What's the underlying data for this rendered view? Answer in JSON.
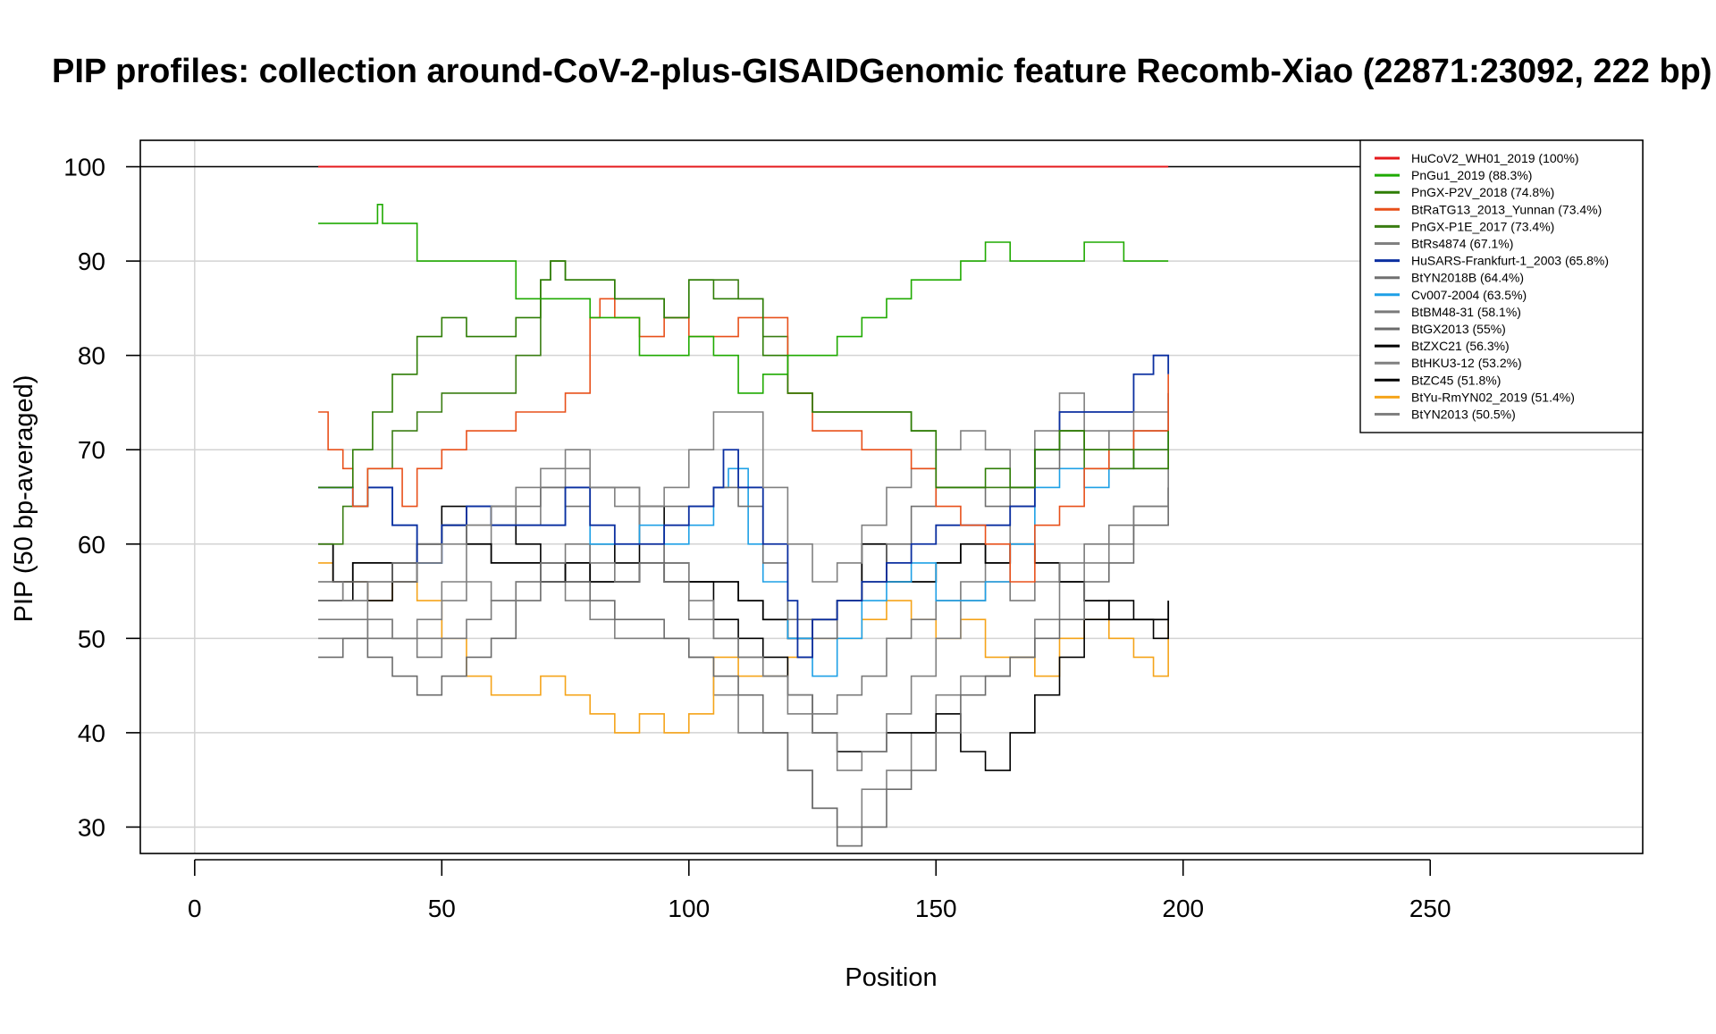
{
  "chart_data": {
    "type": "line",
    "title": "PIP profiles: collection around-CoV-2-plus-GISAIDGenomic feature Recomb-Xiao (22871:23092, 222 bp)",
    "xlabel": "Position",
    "ylabel": "PIP (50 bp-averaged)",
    "xlim": [
      -11,
      293
    ],
    "ylim": [
      27.2,
      102.8
    ],
    "xticks": [
      0,
      50,
      100,
      150,
      200,
      250
    ],
    "yticks": [
      30,
      40,
      50,
      60,
      70,
      80,
      90,
      100
    ],
    "grid": true,
    "reference_line": 100,
    "legend_position": "top-right",
    "series": [
      {
        "name": "HuCoV2_WH01_2019 (100%)",
        "color": "#e41a1c",
        "width": 2,
        "x": [
          25,
          197
        ],
        "y": [
          100,
          100
        ]
      },
      {
        "name": "PnGu1_2019 (88.3%)",
        "color": "#1faa00",
        "width": 1.6,
        "x": [
          25,
          36,
          37,
          38,
          42,
          45,
          60,
          65,
          70,
          75,
          80,
          85,
          90,
          95,
          100,
          105,
          110,
          115,
          120,
          125,
          130,
          135,
          140,
          145,
          150,
          155,
          160,
          165,
          170,
          175,
          180,
          185,
          188,
          197
        ],
        "y": [
          94,
          94,
          96,
          94,
          94,
          90,
          90,
          86,
          86,
          86,
          84,
          84,
          80,
          80,
          82,
          80,
          76,
          78,
          80,
          80,
          82,
          84,
          86,
          88,
          88,
          90,
          92,
          90,
          90,
          90,
          92,
          92,
          90,
          90
        ]
      },
      {
        "name": "PnGX-P2V_2018 (74.8%)",
        "color": "#2e7d05",
        "width": 1.6,
        "x": [
          25,
          28,
          32,
          36,
          40,
          45,
          50,
          55,
          60,
          65,
          70,
          72,
          75,
          80,
          85,
          90,
          95,
          100,
          105,
          110,
          115,
          120,
          125,
          130,
          135,
          140,
          145,
          150,
          155,
          160,
          165,
          170,
          175,
          180,
          185,
          190,
          197
        ],
        "y": [
          66,
          66,
          70,
          74,
          78,
          82,
          84,
          82,
          82,
          84,
          88,
          90,
          88,
          88,
          86,
          86,
          84,
          88,
          86,
          86,
          80,
          76,
          74,
          74,
          74,
          74,
          72,
          66,
          66,
          68,
          66,
          70,
          72,
          70,
          70,
          68,
          72
        ]
      },
      {
        "name": "BtRaTG13_2013_Yunnan (73.4%)",
        "color": "#e8501a",
        "width": 1.6,
        "x": [
          25,
          27,
          30,
          32,
          35,
          40,
          42,
          45,
          50,
          55,
          60,
          65,
          70,
          75,
          80,
          82,
          85,
          90,
          95,
          100,
          105,
          110,
          115,
          120,
          125,
          130,
          135,
          140,
          145,
          150,
          155,
          160,
          165,
          170,
          175,
          180,
          185,
          190,
          197
        ],
        "y": [
          74,
          70,
          68,
          64,
          68,
          68,
          64,
          68,
          70,
          72,
          72,
          74,
          74,
          76,
          84,
          86,
          84,
          82,
          84,
          82,
          82,
          84,
          84,
          76,
          72,
          72,
          70,
          70,
          68,
          64,
          62,
          60,
          56,
          62,
          64,
          68,
          70,
          72,
          78
        ]
      },
      {
        "name": "PnGX-P1E_2017 (73.4%)",
        "color": "#3a7d12",
        "width": 1.6,
        "x": [
          25,
          30,
          35,
          40,
          45,
          50,
          55,
          60,
          65,
          70,
          72,
          75,
          80,
          85,
          90,
          95,
          100,
          105,
          110,
          115,
          120,
          125,
          130,
          135,
          140,
          145,
          150,
          155,
          160,
          165,
          170,
          175,
          180,
          185,
          190,
          197
        ],
        "y": [
          60,
          64,
          68,
          72,
          74,
          76,
          76,
          76,
          80,
          88,
          90,
          88,
          88,
          86,
          86,
          84,
          88,
          88,
          86,
          82,
          76,
          74,
          74,
          74,
          74,
          72,
          66,
          66,
          66,
          66,
          70,
          72,
          68,
          68,
          70,
          72
        ]
      },
      {
        "name": "BtRs4874 (67.1%)",
        "color": "#808080",
        "width": 1.6,
        "x": [
          25,
          30,
          35,
          40,
          45,
          50,
          55,
          60,
          65,
          70,
          75,
          80,
          85,
          90,
          95,
          100,
          105,
          110,
          115,
          120,
          125,
          130,
          135,
          140,
          145,
          150,
          155,
          160,
          165,
          170,
          175,
          180,
          185,
          190,
          197
        ],
        "y": [
          56,
          54,
          56,
          56,
          58,
          60,
          62,
          64,
          66,
          68,
          68,
          66,
          66,
          64,
          66,
          70,
          74,
          74,
          66,
          60,
          56,
          58,
          62,
          66,
          68,
          70,
          72,
          70,
          66,
          70,
          72,
          70,
          72,
          74,
          76
        ]
      },
      {
        "name": "HuSARS-Frankfurt-1_2003 (65.8%)",
        "color": "#0b2fa0",
        "width": 1.8,
        "x": [
          25,
          28,
          32,
          35,
          40,
          45,
          50,
          55,
          60,
          65,
          70,
          75,
          80,
          85,
          90,
          95,
          100,
          105,
          107,
          110,
          115,
          120,
          122,
          125,
          130,
          135,
          140,
          145,
          150,
          155,
          160,
          165,
          170,
          175,
          180,
          185,
          190,
          194,
          197
        ],
        "y": [
          66,
          66,
          64,
          66,
          62,
          58,
          62,
          64,
          62,
          62,
          62,
          66,
          62,
          60,
          60,
          62,
          64,
          66,
          70,
          66,
          60,
          54,
          48,
          52,
          54,
          56,
          58,
          60,
          62,
          62,
          62,
          64,
          70,
          74,
          74,
          74,
          78,
          80,
          78
        ]
      },
      {
        "name": "BtYN2018B (64.4%)",
        "color": "#707070",
        "width": 1.6,
        "x": [
          25,
          30,
          35,
          40,
          45,
          50,
          55,
          60,
          65,
          70,
          75,
          80,
          85,
          90,
          95,
          100,
          105,
          110,
          115,
          120,
          125,
          130,
          135,
          140,
          145,
          150,
          155,
          160,
          165,
          170,
          175,
          180,
          185,
          190,
          197
        ],
        "y": [
          54,
          56,
          56,
          58,
          60,
          62,
          64,
          62,
          64,
          66,
          64,
          66,
          66,
          64,
          64,
          64,
          66,
          64,
          58,
          52,
          50,
          54,
          56,
          60,
          64,
          66,
          66,
          64,
          66,
          68,
          70,
          70,
          70,
          72,
          74
        ]
      },
      {
        "name": "Cv007-2004 (63.5%)",
        "color": "#1ea0e6",
        "width": 1.6,
        "x": [
          25,
          28,
          32,
          35,
          40,
          45,
          50,
          55,
          60,
          65,
          70,
          75,
          80,
          85,
          90,
          95,
          100,
          105,
          108,
          112,
          115,
          120,
          125,
          130,
          135,
          140,
          145,
          150,
          155,
          160,
          165,
          170,
          175,
          180,
          185,
          190,
          197
        ],
        "y": [
          66,
          66,
          64,
          66,
          62,
          58,
          62,
          64,
          62,
          62,
          62,
          66,
          60,
          60,
          62,
          60,
          62,
          66,
          68,
          60,
          56,
          50,
          46,
          50,
          54,
          56,
          58,
          54,
          54,
          56,
          60,
          66,
          68,
          66,
          68,
          70,
          76
        ]
      },
      {
        "name": "BtBM48-31 (58.1%)",
        "color": "#7a7a7a",
        "width": 1.6,
        "x": [
          25,
          30,
          35,
          40,
          45,
          50,
          55,
          60,
          65,
          70,
          75,
          80,
          85,
          90,
          95,
          100,
          105,
          110,
          115,
          120,
          125,
          130,
          135,
          140,
          145,
          150,
          155,
          160,
          165,
          170,
          175,
          180,
          185,
          190,
          197
        ],
        "y": [
          52,
          52,
          50,
          50,
          48,
          50,
          52,
          54,
          56,
          58,
          60,
          58,
          56,
          58,
          56,
          52,
          50,
          48,
          46,
          44,
          42,
          44,
          46,
          50,
          52,
          54,
          56,
          56,
          54,
          56,
          58,
          60,
          62,
          64,
          68
        ]
      },
      {
        "name": "BtGX2013 (55%)",
        "color": "#6b6b6b",
        "width": 1.6,
        "x": [
          25,
          30,
          35,
          40,
          45,
          50,
          55,
          60,
          65,
          70,
          75,
          80,
          85,
          90,
          95,
          100,
          105,
          110,
          115,
          120,
          125,
          130,
          135,
          140,
          145,
          150,
          155,
          160,
          165,
          170,
          175,
          180,
          185,
          190,
          197
        ],
        "y": [
          48,
          50,
          48,
          46,
          44,
          46,
          48,
          50,
          54,
          56,
          56,
          54,
          52,
          52,
          50,
          48,
          46,
          44,
          40,
          36,
          32,
          28,
          30,
          34,
          36,
          40,
          44,
          46,
          48,
          50,
          52,
          56,
          58,
          62,
          66
        ]
      },
      {
        "name": "BtZXC21 (56.3%)",
        "color": "#000000",
        "width": 1.8,
        "x": [
          25,
          28,
          32,
          35,
          40,
          45,
          50,
          55,
          60,
          65,
          70,
          75,
          80,
          85,
          90,
          95,
          100,
          105,
          110,
          115,
          120,
          125,
          130,
          135,
          140,
          145,
          150,
          155,
          160,
          165,
          170,
          175,
          180,
          185,
          190,
          194,
          197
        ],
        "y": [
          60,
          56,
          58,
          58,
          56,
          60,
          62,
          60,
          58,
          58,
          56,
          58,
          56,
          56,
          58,
          56,
          56,
          56,
          54,
          52,
          50,
          52,
          54,
          60,
          56,
          56,
          58,
          60,
          58,
          60,
          58,
          56,
          54,
          52,
          52,
          52,
          54
        ]
      },
      {
        "name": "BtHKU3-12 (53.2%)",
        "color": "#808080",
        "width": 1.6,
        "x": [
          25,
          30,
          35,
          40,
          45,
          50,
          55,
          60,
          65,
          70,
          75,
          80,
          85,
          90,
          95,
          100,
          105,
          110,
          115,
          120,
          125,
          130,
          135,
          140,
          145,
          150,
          155,
          160,
          165,
          170,
          175,
          180,
          185,
          190,
          197
        ],
        "y": [
          56,
          54,
          52,
          50,
          52,
          56,
          60,
          62,
          62,
          66,
          70,
          66,
          64,
          60,
          58,
          54,
          50,
          48,
          46,
          42,
          40,
          36,
          38,
          42,
          46,
          50,
          54,
          58,
          64,
          72,
          76,
          72,
          68,
          68,
          70
        ]
      },
      {
        "name": "BtZC45 (51.8%)",
        "color": "#000000",
        "width": 1.6,
        "x": [
          25,
          28,
          32,
          35,
          40,
          45,
          50,
          55,
          60,
          65,
          70,
          75,
          80,
          85,
          90,
          95,
          100,
          105,
          110,
          115,
          120,
          125,
          130,
          135,
          140,
          145,
          150,
          155,
          160,
          165,
          170,
          175,
          180,
          185,
          190,
          194,
          197
        ],
        "y": [
          54,
          54,
          56,
          54,
          58,
          60,
          64,
          62,
          64,
          60,
          58,
          56,
          60,
          58,
          64,
          58,
          56,
          52,
          50,
          48,
          44,
          40,
          38,
          38,
          40,
          40,
          42,
          38,
          36,
          40,
          44,
          48,
          52,
          54,
          52,
          50,
          52
        ]
      },
      {
        "name": "BtYu-RmYN02_2019 (51.4%)",
        "color": "#f5a41a",
        "width": 1.6,
        "x": [
          25,
          28,
          32,
          35,
          40,
          45,
          50,
          55,
          60,
          65,
          70,
          75,
          80,
          85,
          90,
          95,
          100,
          105,
          110,
          115,
          120,
          125,
          130,
          135,
          140,
          145,
          150,
          155,
          160,
          165,
          170,
          175,
          180,
          185,
          190,
          194,
          197
        ],
        "y": [
          58,
          56,
          56,
          54,
          56,
          54,
          50,
          46,
          44,
          44,
          46,
          44,
          42,
          40,
          42,
          40,
          42,
          48,
          46,
          46,
          48,
          50,
          50,
          52,
          54,
          52,
          50,
          52,
          48,
          48,
          46,
          50,
          52,
          50,
          48,
          46,
          52
        ]
      },
      {
        "name": "BtYN2013 (50.5%)",
        "color": "#808080",
        "width": 1.6,
        "x": [
          25,
          30,
          35,
          40,
          45,
          50,
          55,
          60,
          65,
          70,
          75,
          80,
          85,
          90,
          95,
          100,
          105,
          110,
          115,
          120,
          125,
          130,
          135,
          140,
          145,
          150,
          155,
          160,
          165,
          170,
          175,
          180,
          185,
          190,
          197
        ],
        "y": [
          50,
          50,
          52,
          50,
          50,
          54,
          56,
          54,
          56,
          56,
          54,
          52,
          50,
          50,
          50,
          48,
          44,
          40,
          40,
          36,
          32,
          30,
          34,
          36,
          40,
          44,
          46,
          46,
          48,
          52,
          56,
          58,
          60,
          64,
          66
        ]
      }
    ]
  }
}
